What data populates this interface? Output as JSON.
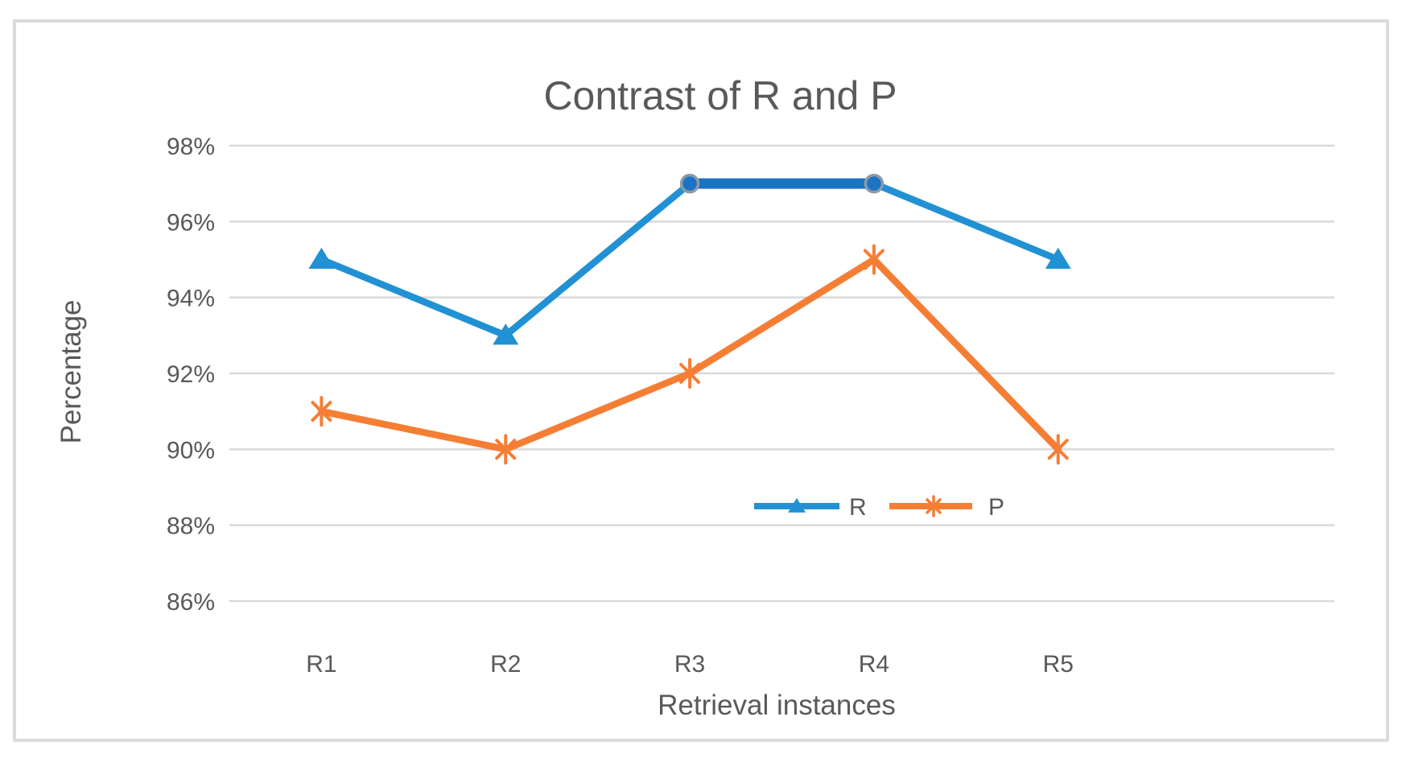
{
  "page": {
    "background": "#ffffff",
    "frame_border_color": "#dbdbdb"
  },
  "chart_data": {
    "type": "line",
    "title": "Contrast of R and P",
    "xlabel": "Retrieval instances",
    "ylabel": "Percentage",
    "categories": [
      "R1",
      "R2",
      "R3",
      "R4",
      "R5"
    ],
    "series": [
      {
        "name": "R",
        "values": [
          95,
          93,
          97,
          97,
          95
        ],
        "color": "#2191D4",
        "emphasis_color": "#1B73C4",
        "marker": "triangle",
        "circle_marker_indices": [
          2,
          3
        ]
      },
      {
        "name": "P",
        "values": [
          91,
          90,
          92,
          95,
          90
        ],
        "color": "#F57E35",
        "marker": "asterisk"
      }
    ],
    "ylim": [
      86,
      98
    ],
    "y_ticks": [
      {
        "label": "98%",
        "value": 98
      },
      {
        "label": "96%",
        "value": 96
      },
      {
        "label": "94%",
        "value": 94
      },
      {
        "label": "92%",
        "value": 92
      },
      {
        "label": "90%",
        "value": 90
      },
      {
        "label": "88%",
        "value": 88
      },
      {
        "label": "86%",
        "value": 86
      }
    ],
    "grid": "horizontal",
    "grid_color": "#D9D9D9",
    "text_color": "#595959",
    "marker_ring_color": "#8C9AA6",
    "legend": {
      "position": "inside-below-center",
      "items": [
        "R",
        "P"
      ]
    }
  }
}
